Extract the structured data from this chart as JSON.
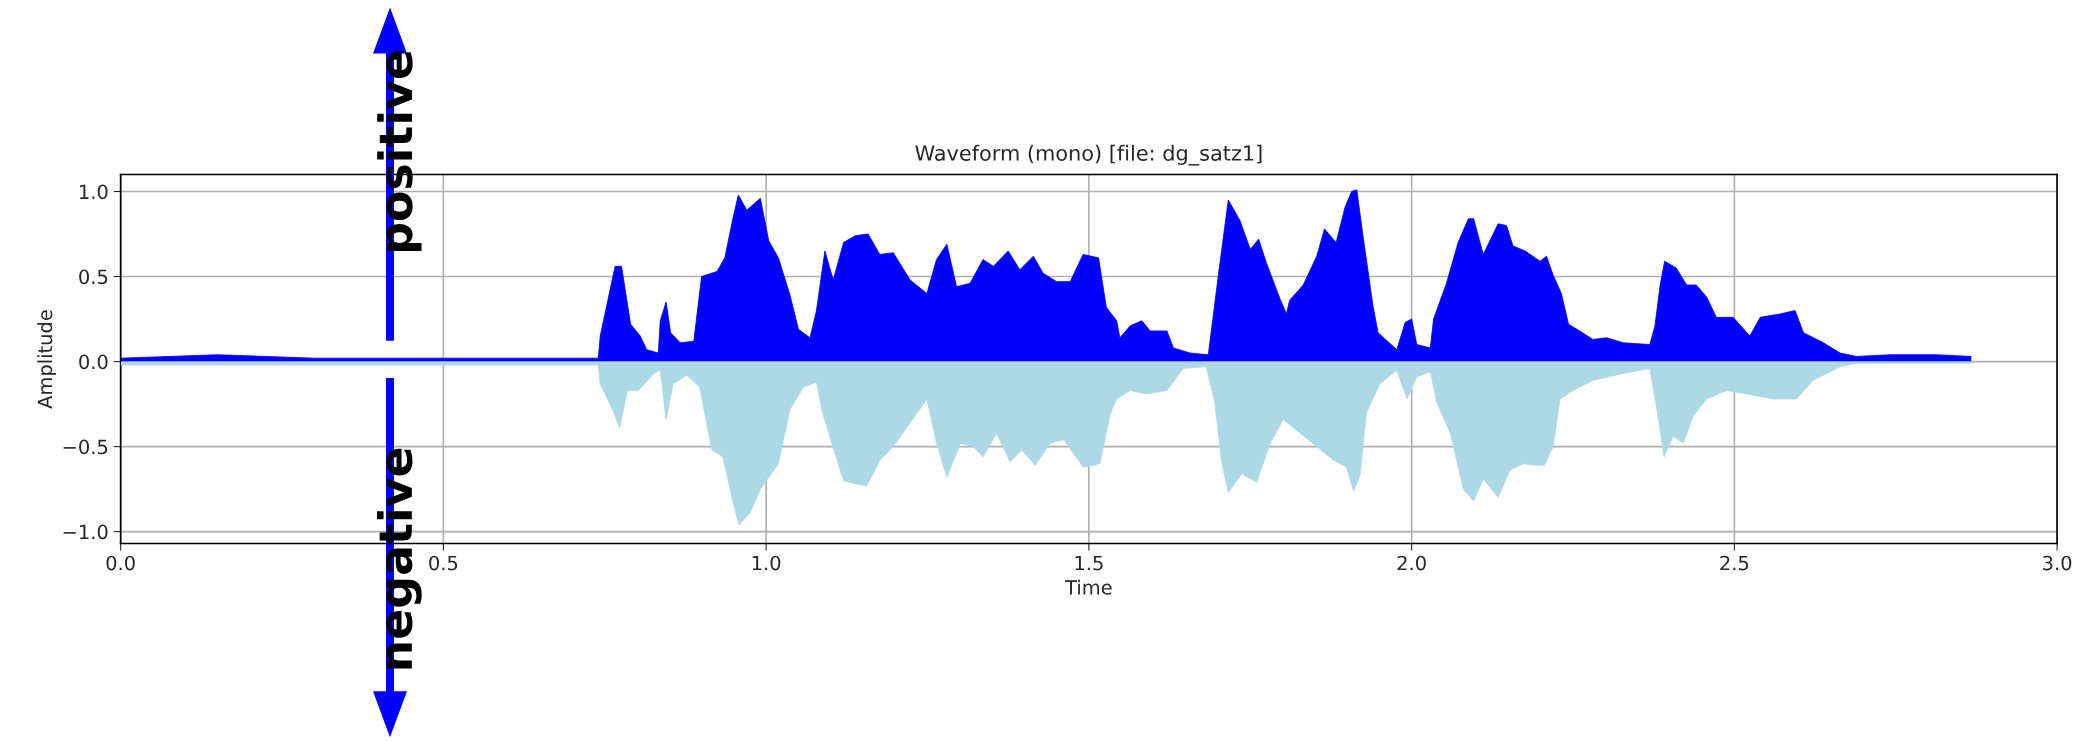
{
  "chart_data": {
    "type": "area",
    "title": "Waveform (mono) [file: dg_satz1]",
    "xlabel": "Time",
    "ylabel": "Amplitude",
    "xlim": [
      0,
      3
    ],
    "xticks": [
      {
        "value": 0,
        "label": "0.0"
      },
      0.5,
      {
        "value": 1,
        "label": "1.0"
      },
      1.5,
      {
        "value": 2,
        "label": "2.0"
      },
      2.5,
      {
        "value": 3,
        "label": "3.0"
      }
    ],
    "ylim": [
      -1.07,
      1.1
    ],
    "yticks": [
      {
        "value": -1,
        "label": "−1.0"
      },
      {
        "value": -0.5,
        "label": "−0.5"
      },
      {
        "value": 0,
        "label": "0.0"
      },
      0.5,
      {
        "value": 1,
        "label": "1.0"
      }
    ],
    "grid": true,
    "annotations": [
      "positive",
      "negative"
    ],
    "series": [
      {
        "color": "#0000ff",
        "x": [
          0,
          0.15,
          0.3,
          0.74,
          0.743,
          0.766,
          0.776,
          0.79,
          0.805,
          0.815,
          0.833,
          0.836,
          0.845,
          0.852,
          0.867,
          0.888,
          0.9,
          0.924,
          0.936,
          0.949,
          0.957,
          0.97,
          0.991,
          1.004,
          1.019,
          1.037,
          1.05,
          1.068,
          1.078,
          1.091,
          1.104,
          1.12,
          1.138,
          1.158,
          1.176,
          1.197,
          1.223,
          1.249,
          1.264,
          1.28,
          1.295,
          1.316,
          1.336,
          1.352,
          1.375,
          1.393,
          1.414,
          1.429,
          1.45,
          1.471,
          1.491,
          1.515,
          1.527,
          1.543,
          1.548,
          1.564,
          1.582,
          1.595,
          1.621,
          1.631,
          1.657,
          1.685,
          1.693,
          1.701,
          1.716,
          1.734,
          1.75,
          1.763,
          1.775,
          1.796,
          1.806,
          1.811,
          1.832,
          1.853,
          1.865,
          1.883,
          1.897,
          1.907,
          1.915,
          1.925,
          1.94,
          1.948,
          1.977,
          1.99,
          2.0,
          2.008,
          2.029,
          2.034,
          2.054,
          2.072,
          2.088,
          2.096,
          2.111,
          2.134,
          2.147,
          2.157,
          2.176,
          2.199,
          2.209,
          2.219,
          2.232,
          2.243,
          2.256,
          2.281,
          2.302,
          2.328,
          2.369,
          2.377,
          2.385,
          2.392,
          2.41,
          2.426,
          2.441,
          2.457,
          2.472,
          2.498,
          2.524,
          2.54,
          2.571,
          2.594,
          2.607,
          2.638,
          2.664,
          2.689,
          2.741,
          2.813,
          2.867
        ],
        "values": [
          0.02,
          0.04,
          0.02,
          0.02,
          0.15,
          0.56,
          0.56,
          0.22,
          0.15,
          0.07,
          0.05,
          0.24,
          0.35,
          0.17,
          0.11,
          0.12,
          0.5,
          0.53,
          0.61,
          0.85,
          0.98,
          0.89,
          0.96,
          0.71,
          0.61,
          0.39,
          0.19,
          0.14,
          0.3,
          0.65,
          0.48,
          0.7,
          0.74,
          0.75,
          0.63,
          0.64,
          0.48,
          0.4,
          0.6,
          0.69,
          0.44,
          0.46,
          0.6,
          0.56,
          0.65,
          0.54,
          0.62,
          0.52,
          0.47,
          0.47,
          0.63,
          0.61,
          0.32,
          0.24,
          0.14,
          0.21,
          0.24,
          0.18,
          0.18,
          0.08,
          0.05,
          0.04,
          0.28,
          0.52,
          0.95,
          0.83,
          0.66,
          0.72,
          0.58,
          0.37,
          0.28,
          0.36,
          0.45,
          0.62,
          0.78,
          0.7,
          0.91,
          1.0,
          1.01,
          0.73,
          0.33,
          0.17,
          0.07,
          0.23,
          0.25,
          0.1,
          0.08,
          0.25,
          0.46,
          0.7,
          0.84,
          0.84,
          0.63,
          0.81,
          0.8,
          0.68,
          0.65,
          0.59,
          0.62,
          0.51,
          0.4,
          0.22,
          0.19,
          0.13,
          0.14,
          0.11,
          0.1,
          0.21,
          0.45,
          0.59,
          0.55,
          0.45,
          0.45,
          0.38,
          0.26,
          0.26,
          0.15,
          0.26,
          0.28,
          0.3,
          0.17,
          0.11,
          0.05,
          0.03,
          0.04,
          0.04,
          0.03
        ]
      },
      {
        "color": "#add8e6",
        "x": [
          0,
          0.74,
          0.743,
          0.764,
          0.773,
          0.785,
          0.802,
          0.826,
          0.836,
          0.845,
          0.856,
          0.877,
          0.897,
          0.916,
          0.933,
          0.949,
          0.958,
          0.975,
          0.991,
          1.019,
          1.037,
          1.058,
          1.078,
          1.086,
          1.104,
          1.12,
          1.139,
          1.156,
          1.176,
          1.197,
          1.223,
          1.249,
          1.264,
          1.28,
          1.301,
          1.321,
          1.336,
          1.357,
          1.378,
          1.396,
          1.417,
          1.44,
          1.461,
          1.491,
          1.507,
          1.517,
          1.533,
          1.543,
          1.564,
          1.589,
          1.621,
          1.646,
          1.682,
          1.695,
          1.706,
          1.716,
          1.737,
          1.76,
          1.781,
          1.801,
          1.827,
          1.853,
          1.879,
          1.899,
          1.91,
          1.92,
          1.93,
          1.951,
          1.977,
          1.993,
          2.008,
          2.029,
          2.039,
          2.06,
          2.08,
          2.096,
          2.111,
          2.134,
          2.152,
          2.173,
          2.194,
          2.206,
          2.219,
          2.23,
          2.25,
          2.281,
          2.328,
          2.369,
          2.38,
          2.391,
          2.405,
          2.421,
          2.436,
          2.457,
          2.488,
          2.519,
          2.56,
          2.596,
          2.622,
          2.664,
          2.689,
          2.867
        ],
        "values": [
          -0.02,
          -0.02,
          -0.13,
          -0.3,
          -0.39,
          -0.17,
          -0.17,
          -0.07,
          -0.05,
          -0.34,
          -0.13,
          -0.08,
          -0.15,
          -0.52,
          -0.56,
          -0.83,
          -0.96,
          -0.89,
          -0.75,
          -0.6,
          -0.28,
          -0.15,
          -0.12,
          -0.28,
          -0.51,
          -0.7,
          -0.72,
          -0.73,
          -0.58,
          -0.5,
          -0.36,
          -0.22,
          -0.48,
          -0.68,
          -0.48,
          -0.5,
          -0.56,
          -0.42,
          -0.59,
          -0.52,
          -0.61,
          -0.48,
          -0.46,
          -0.62,
          -0.61,
          -0.6,
          -0.31,
          -0.22,
          -0.17,
          -0.19,
          -0.17,
          -0.04,
          -0.03,
          -0.24,
          -0.6,
          -0.77,
          -0.66,
          -0.71,
          -0.48,
          -0.34,
          -0.42,
          -0.5,
          -0.58,
          -0.62,
          -0.76,
          -0.67,
          -0.3,
          -0.13,
          -0.05,
          -0.22,
          -0.09,
          -0.06,
          -0.24,
          -0.42,
          -0.75,
          -0.82,
          -0.69,
          -0.8,
          -0.64,
          -0.6,
          -0.61,
          -0.61,
          -0.5,
          -0.22,
          -0.17,
          -0.11,
          -0.07,
          -0.04,
          -0.28,
          -0.56,
          -0.44,
          -0.48,
          -0.32,
          -0.22,
          -0.17,
          -0.19,
          -0.22,
          -0.22,
          -0.11,
          -0.03,
          -0.01,
          -0.01
        ]
      }
    ]
  }
}
